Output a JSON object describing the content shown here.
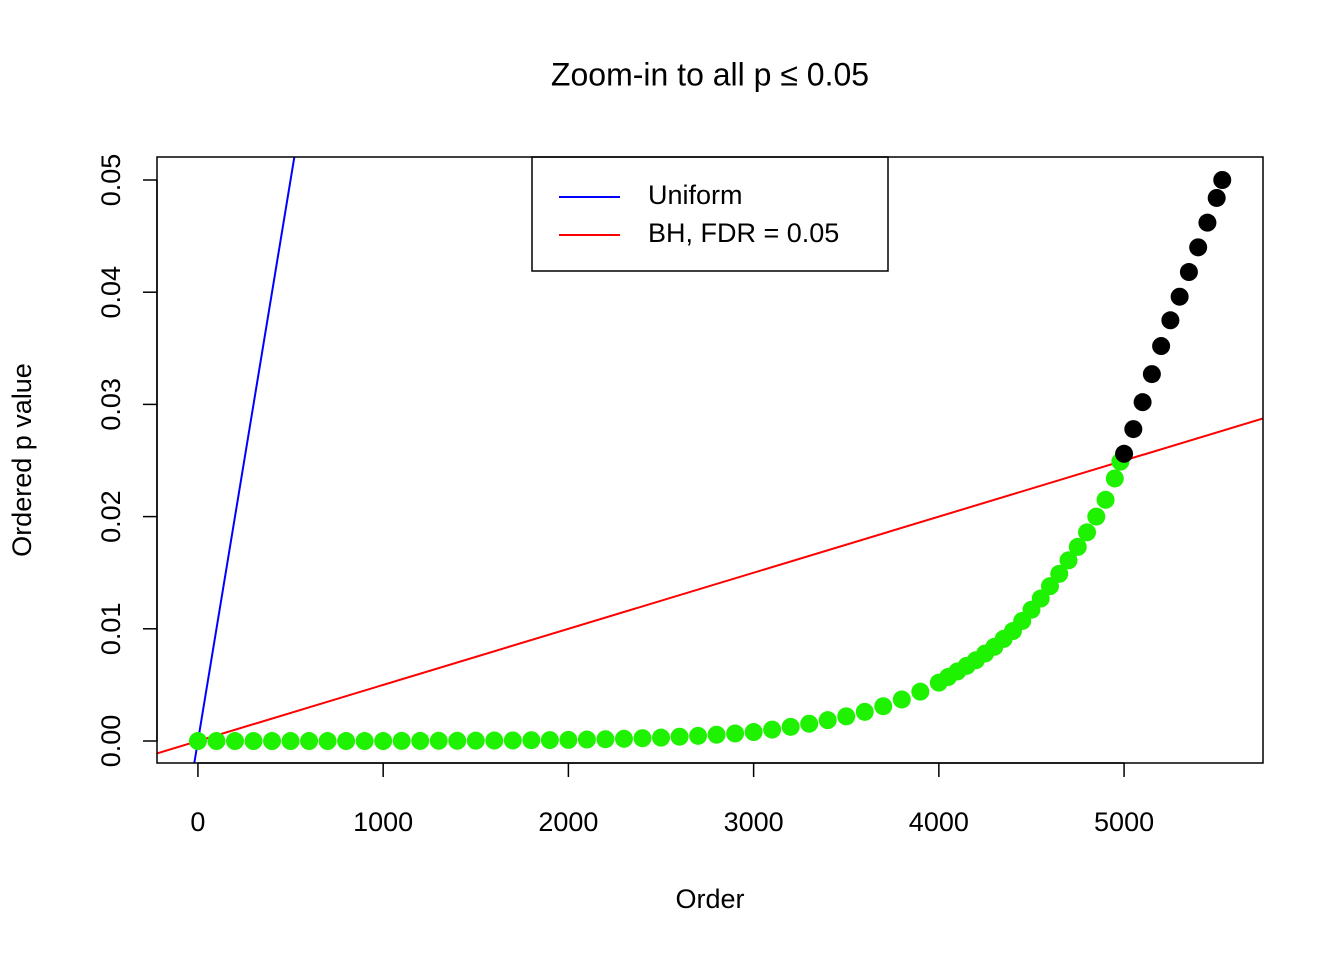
{
  "chart_data": {
    "type": "scatter",
    "title": "Zoom-in to all p ≤ 0.05",
    "x_label": "Order",
    "y_label": "Ordered p value",
    "xlim": [
      -221,
      5750
    ],
    "ylim": [
      -0.00196,
      0.05205
    ],
    "xticks": [
      0,
      1000,
      2000,
      3000,
      4000,
      5000
    ],
    "yticks": [
      {
        "value": 0,
        "label": "0.00"
      },
      {
        "value": 0.01,
        "label": "0.01"
      },
      {
        "value": 0.02,
        "label": "0.02"
      },
      {
        "value": 0.03,
        "label": "0.03"
      },
      {
        "value": 0.04,
        "label": "0.04"
      },
      {
        "value": 0.05,
        "label": "0.05"
      }
    ],
    "points": [
      {
        "color": "#1ff200",
        "x": [
          0,
          100,
          200,
          300,
          400,
          500,
          600,
          700,
          800,
          900,
          1000,
          1100,
          1200,
          1300,
          1400,
          1500,
          1600,
          1700,
          1800,
          1900,
          2000,
          2100,
          2200,
          2300,
          2400,
          2500,
          2600,
          2700,
          2800,
          2900,
          3000,
          3100,
          3200,
          3300,
          3400,
          3500,
          3600,
          3700,
          3800,
          3900,
          4000,
          4050,
          4100,
          4150,
          4200,
          4250,
          4300,
          4350,
          4400,
          4450,
          4500,
          4550,
          4600,
          4650,
          4700,
          4750,
          4800,
          4850,
          4900,
          4950,
          4980
        ],
        "y": [
          0,
          0,
          0,
          0,
          0,
          0,
          0,
          0,
          0,
          0,
          0,
          1e-05,
          1e-05,
          2e-05,
          2e-05,
          3e-05,
          4e-05,
          5e-05,
          7e-05,
          8e-05,
          0.0001,
          0.00013,
          0.00016,
          0.0002,
          0.00025,
          0.0003,
          0.00038,
          0.00046,
          0.00056,
          0.00067,
          0.0008,
          0.00102,
          0.00126,
          0.00154,
          0.00186,
          0.0022,
          0.0026,
          0.0031,
          0.0037,
          0.0044,
          0.0052,
          0.0057,
          0.0062,
          0.0067,
          0.0072,
          0.0078,
          0.0084,
          0.0091,
          0.0098,
          0.0107,
          0.0117,
          0.0127,
          0.0138,
          0.0149,
          0.0161,
          0.0173,
          0.0186,
          0.02,
          0.0215,
          0.0234,
          0.0249
        ]
      },
      {
        "color": "#000000",
        "x": [
          5000,
          5050,
          5100,
          5150,
          5200,
          5250,
          5300,
          5350,
          5400,
          5450,
          5500,
          5530
        ],
        "y": [
          0.0256,
          0.0278,
          0.0302,
          0.0327,
          0.0352,
          0.0375,
          0.0396,
          0.0418,
          0.044,
          0.0462,
          0.0484,
          0.05
        ]
      }
    ],
    "lines": [
      {
        "name": "Uniform",
        "color": "#0000ff",
        "intercept": 0,
        "slope": 0.0001
      },
      {
        "name": "BH, FDR = 0.05",
        "color": "#ff0000",
        "intercept": 0,
        "slope": 5e-06
      }
    ]
  }
}
